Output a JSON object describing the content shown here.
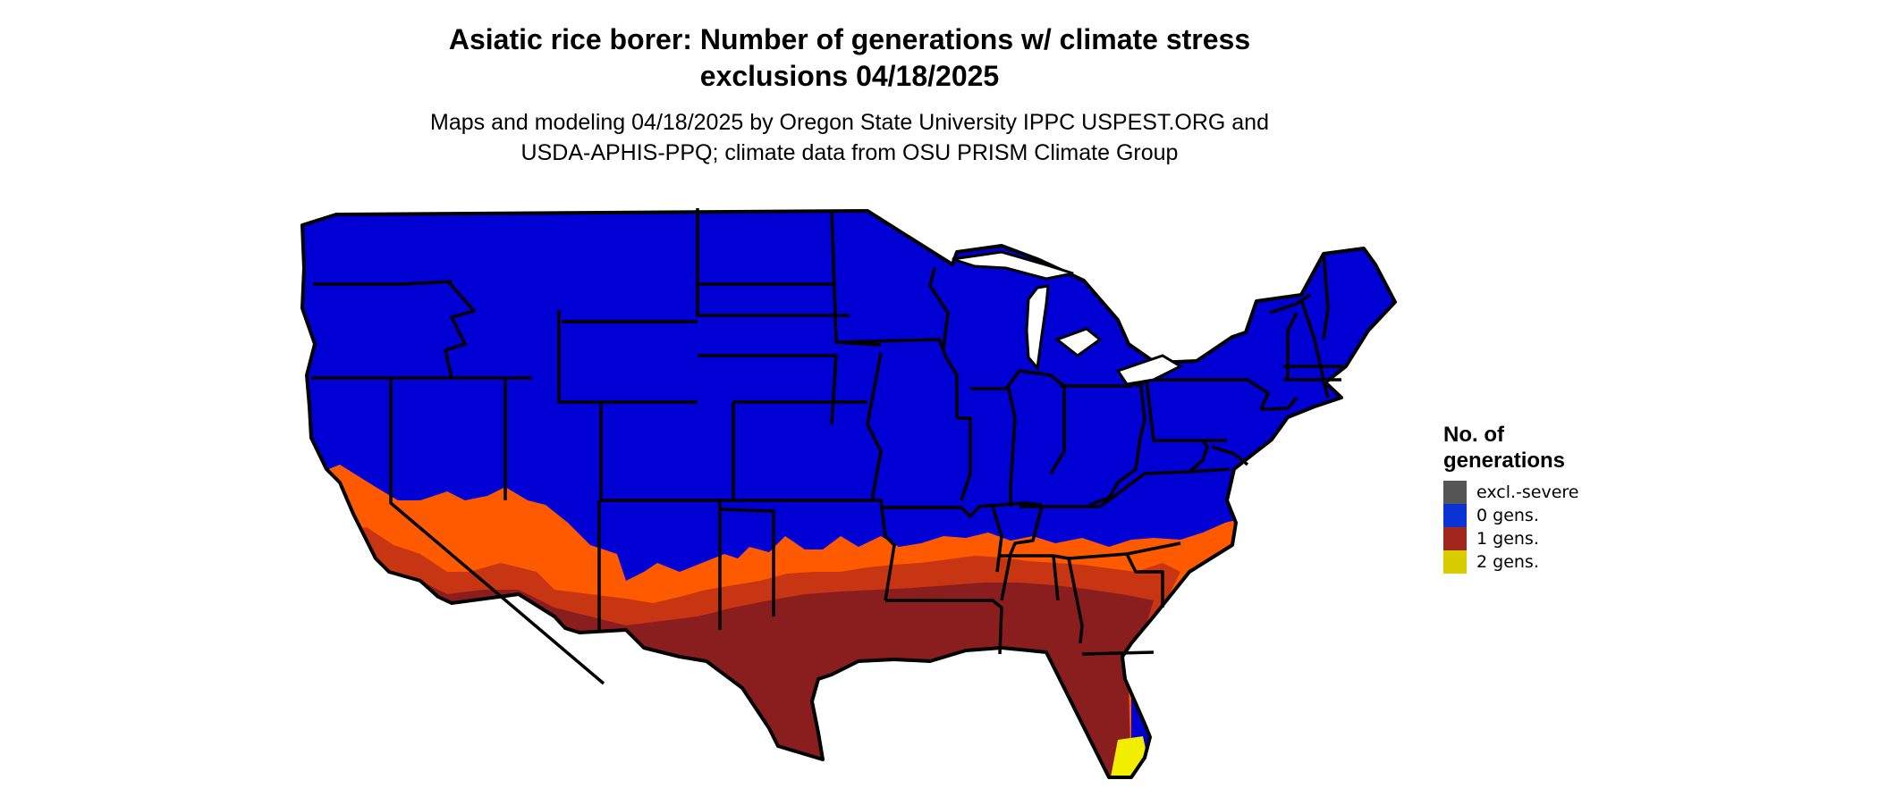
{
  "title_line1": "Asiatic rice borer: Number of generations w/ climate stress",
  "title_line2": "exclusions 04/18/2025",
  "subtitle_line1": "Maps and modeling 04/18/2025 by Oregon State University IPPC USPEST.ORG and",
  "subtitle_line2": "USDA-APHIS-PPQ; climate data from OSU PRISM Climate Group",
  "legend": {
    "title_line1": "No. of",
    "title_line2": "generations",
    "items": [
      {
        "label": "excl.-severe",
        "color": "#555555"
      },
      {
        "label": "0 gens.",
        "color": "#0a33d6"
      },
      {
        "label": "1 gens.",
        "color": "#a3261c"
      },
      {
        "label": "2 gens.",
        "color": "#d9cc00"
      }
    ]
  },
  "map_colors": {
    "zero_gens": "#0000d4",
    "one_gen_dark": "#8a1e1e",
    "one_gen_mid": "#c73513",
    "one_gen_light": "#ff5a00",
    "two_gens": "#f2ee00",
    "border": "#000000"
  }
}
